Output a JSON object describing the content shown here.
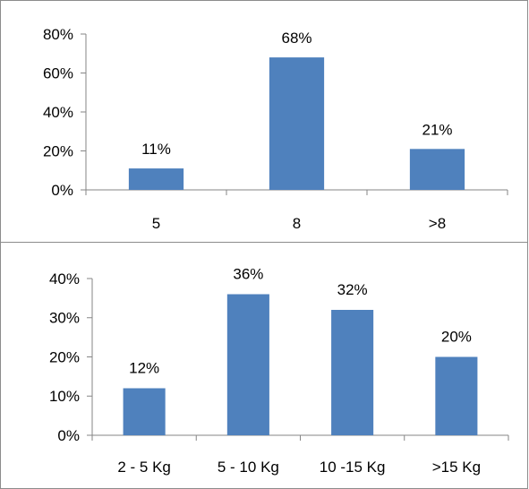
{
  "colors": {
    "bar": "#4f81bd",
    "axis": "#868686",
    "text": "#000000"
  },
  "chart_data": [
    {
      "type": "bar",
      "title": "",
      "xlabel": "",
      "ylabel": "",
      "categories": [
        "5",
        "8",
        ">8"
      ],
      "values": [
        11,
        68,
        21
      ],
      "value_labels": [
        "11%",
        "68%",
        "21%"
      ],
      "ylim": [
        0,
        80
      ],
      "yticks": [
        0,
        20,
        40,
        60,
        80
      ],
      "ytick_labels": [
        "0%",
        "20%",
        "40%",
        "60%",
        "80%"
      ],
      "grid": false,
      "legend": "none"
    },
    {
      "type": "bar",
      "title": "",
      "xlabel": "",
      "ylabel": "",
      "categories": [
        "2 - 5 Kg",
        "5 - 10 Kg",
        "10 -15 Kg",
        ">15 Kg"
      ],
      "values": [
        12,
        36,
        32,
        20
      ],
      "value_labels": [
        "12%",
        "36%",
        "32%",
        "20%"
      ],
      "ylim": [
        0,
        40
      ],
      "yticks": [
        0,
        10,
        20,
        30,
        40
      ],
      "ytick_labels": [
        "0%",
        "10%",
        "20%",
        "30%",
        "40%"
      ],
      "grid": false,
      "legend": "none"
    }
  ]
}
